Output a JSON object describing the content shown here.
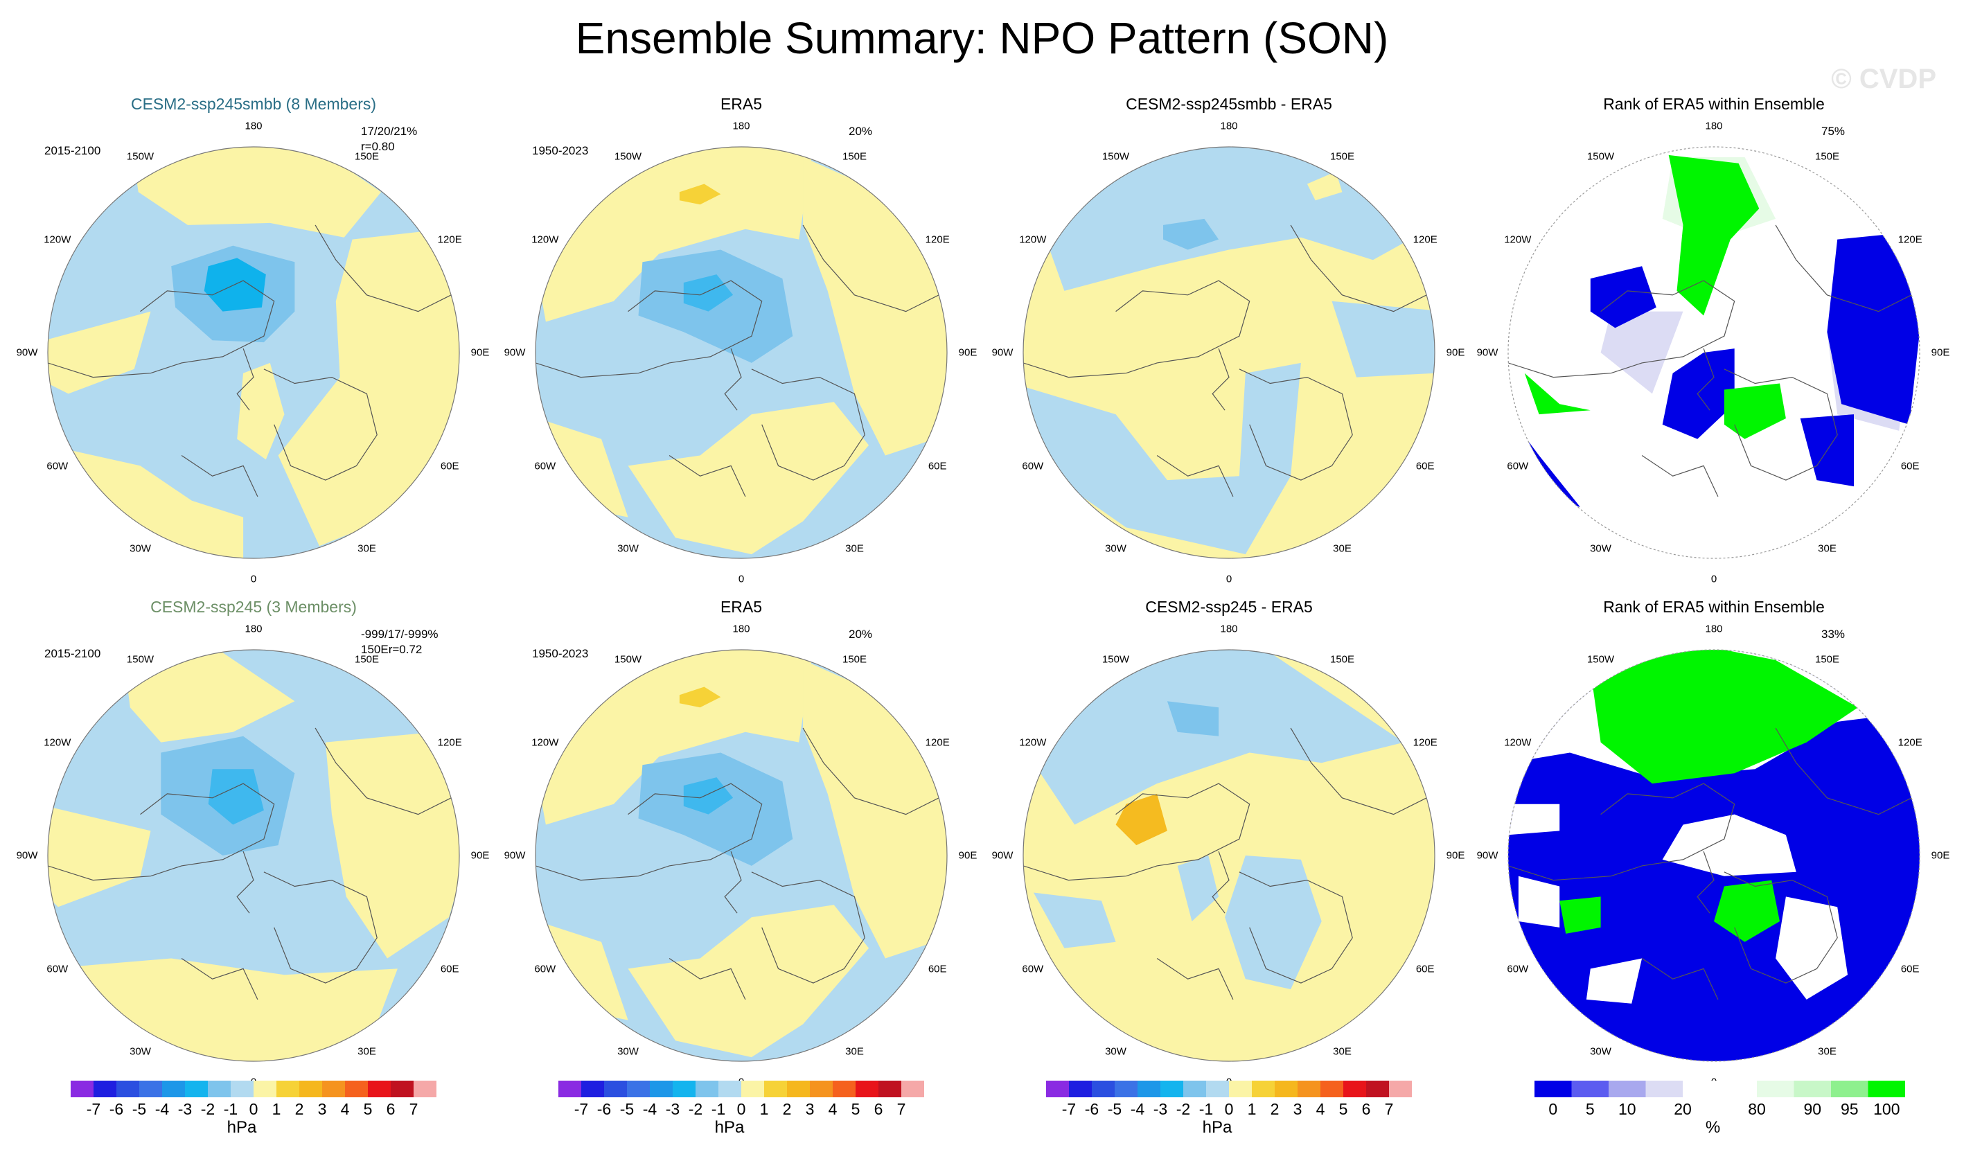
{
  "title": "Ensemble Summary: NPO Pattern (SON)",
  "watermark": "© CVDP",
  "colors": {
    "light_blue": "#b2daf0",
    "mid_blue": "#7ec4ec",
    "deep_blue": "#3fb8ee",
    "cyan": "#0fb2ec",
    "light_yellow": "#fbf4a6",
    "yellow": "#f6d237",
    "orange": "#f5bb20",
    "rank_blue": "#0000e6",
    "rank_green": "#00f500",
    "rank_white": "#ffffff",
    "rank_lavender": "#dcdcf4",
    "rank_pale_green": "#e6fbe6"
  },
  "longitude_labels": [
    "180",
    "150E",
    "120E",
    "90E",
    "60E",
    "30E",
    "0",
    "30W",
    "60W",
    "90W",
    "120W",
    "150W"
  ],
  "panels": [
    {
      "title": "CESM2-ssp245smbb (8 Members)",
      "style": "m1",
      "top_left": "2015-2100",
      "top_right_1": "17/20/21%",
      "top_right_2": "r=0.80"
    },
    {
      "title": "ERA5",
      "style": "",
      "top_left": "1950-2023",
      "top_right_1": "20%",
      "top_right_2": ""
    },
    {
      "title": "CESM2-ssp245smbb - ERA5",
      "style": "",
      "top_left": "",
      "top_right_1": "",
      "top_right_2": ""
    },
    {
      "title": "Rank of ERA5 within Ensemble",
      "style": "",
      "top_left": "",
      "top_right_1": "75%",
      "top_right_2": ""
    },
    {
      "title": "CESM2-ssp245 (3 Members)",
      "style": "m2",
      "top_left": "2015-2100",
      "top_right_1": "-999/17/-999%",
      "top_right_2": "150Er=0.72"
    },
    {
      "title": "ERA5",
      "style": "",
      "top_left": "1950-2023",
      "top_right_1": "20%",
      "top_right_2": ""
    },
    {
      "title": "CESM2-ssp245 - ERA5",
      "style": "",
      "top_left": "",
      "top_right_1": "",
      "top_right_2": ""
    },
    {
      "title": "Rank of ERA5 within Ensemble",
      "style": "",
      "top_left": "",
      "top_right_1": "33%",
      "top_right_2": ""
    }
  ],
  "colorbars": [
    {
      "units": "hPa",
      "labels": [
        "-7",
        "-6",
        "-5",
        "-4",
        "-3",
        "-2",
        "-1",
        "0",
        "1",
        "2",
        "3",
        "4",
        "5",
        "6",
        "7"
      ],
      "colors": [
        "#8a2be2",
        "#1f1fe0",
        "#2b4fe0",
        "#3b72e6",
        "#1d97e8",
        "#14b4ee",
        "#7ec4ec",
        "#b2daf0",
        "#fbf4a6",
        "#f6d237",
        "#f5b71e",
        "#f5931f",
        "#f5611e",
        "#e8141a",
        "#c01220",
        "#f5a8a8"
      ]
    },
    {
      "units": "%",
      "labels": [
        "0",
        "5",
        "10",
        "20",
        "80",
        "90",
        "95",
        "100"
      ],
      "label_positions": [
        0.5,
        1.5,
        2.5,
        4,
        6,
        7.5,
        8.5,
        9.5
      ],
      "colors": [
        "#0000e6",
        "#5c5cf0",
        "#a8a8ee",
        "#dcdcf4",
        "#ffffff",
        "#ffffff",
        "#e6fbe6",
        "#c8f7c8",
        "#8ef08e",
        "#00f500"
      ]
    }
  ],
  "chart_data": [
    {
      "type": "heatmap",
      "panel": "CESM2-ssp245smbb (8 Members)",
      "projection": "north polar stereographic",
      "units": "hPa",
      "period": "2015-2100",
      "pattern_stats": "17/20/21%",
      "pattern_correlation": 0.8,
      "value_range": [
        -3,
        1
      ]
    },
    {
      "type": "heatmap",
      "panel": "ERA5",
      "projection": "north polar stereographic",
      "units": "hPa",
      "period": "1950-2023",
      "pct_variance": 20,
      "value_range": [
        -3,
        2
      ]
    },
    {
      "type": "heatmap",
      "panel": "CESM2-ssp245smbb - ERA5",
      "projection": "north polar stereographic",
      "units": "hPa",
      "value_range": [
        -2,
        1
      ]
    },
    {
      "type": "heatmap",
      "panel": "Rank of ERA5 within Ensemble",
      "projection": "north polar stereographic",
      "units": "%",
      "area_pct": 75,
      "value_range": [
        0,
        100
      ]
    },
    {
      "type": "heatmap",
      "panel": "CESM2-ssp245 (3 Members)",
      "projection": "north polar stereographic",
      "units": "hPa",
      "period": "2015-2100",
      "pattern_stats": "-999/17/-999%",
      "pattern_correlation": 0.72,
      "value_range": [
        -3,
        1
      ]
    },
    {
      "type": "heatmap",
      "panel": "ERA5",
      "projection": "north polar stereographic",
      "units": "hPa",
      "period": "1950-2023",
      "pct_variance": 20,
      "value_range": [
        -3,
        2
      ]
    },
    {
      "type": "heatmap",
      "panel": "CESM2-ssp245 - ERA5",
      "projection": "north polar stereographic",
      "units": "hPa",
      "value_range": [
        -2,
        2
      ]
    },
    {
      "type": "heatmap",
      "panel": "Rank of ERA5 within Ensemble",
      "projection": "north polar stereographic",
      "units": "%",
      "area_pct": 33,
      "value_range": [
        0,
        100
      ]
    }
  ]
}
